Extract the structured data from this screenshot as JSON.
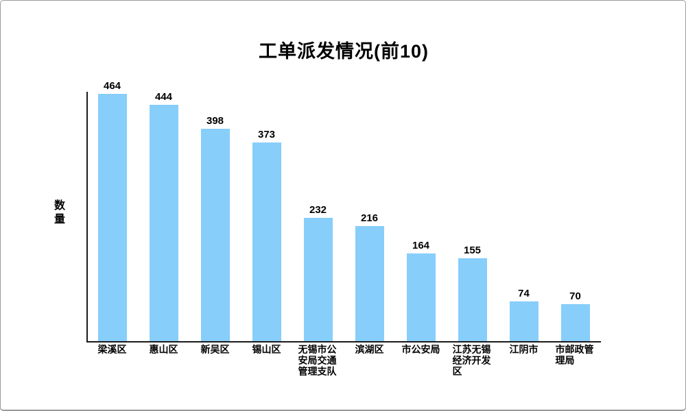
{
  "window": {
    "background": "#ffffff",
    "border_color": "#9a9a9a"
  },
  "chart_data": {
    "type": "bar",
    "title": "工单派发情况(前10)",
    "xlabel": "",
    "ylabel": "数量",
    "categories": [
      "梁溪区",
      "惠山区",
      "新吴区",
      "锡山区",
      "无锡市公安局交通管理支队",
      "滨湖区",
      "市公安局",
      "江苏无锡经济开发区",
      "江阴市",
      "市邮政管理局"
    ],
    "values": [
      464,
      444,
      398,
      373,
      232,
      216,
      164,
      155,
      74,
      70
    ],
    "ylim": [
      0,
      468
    ],
    "bar_color": "#87CEFA",
    "axis_color": "#1a1a1a",
    "grid": false,
    "legend": false,
    "value_labels_shown": true
  }
}
